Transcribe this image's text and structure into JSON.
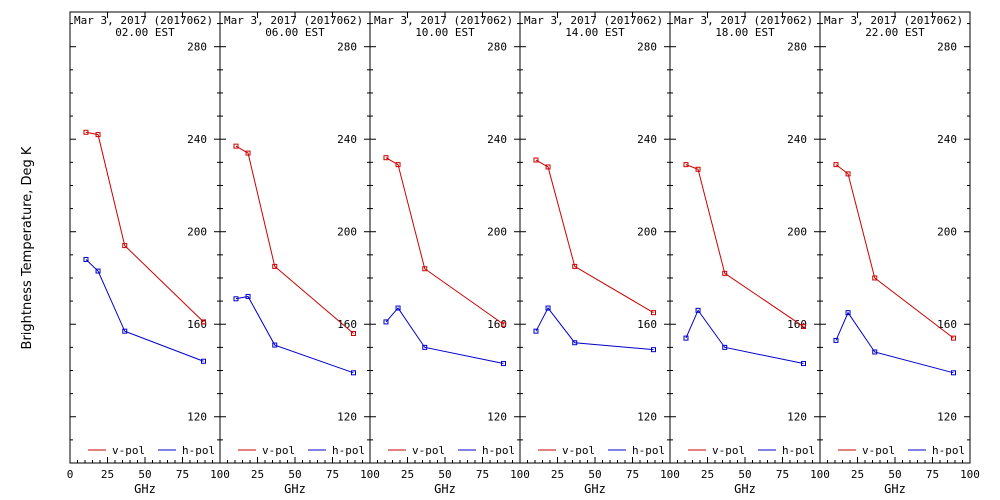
{
  "ylabel": "Brightness Temperature, Deg K",
  "xlabel": "GHz",
  "chart_data": [
    {
      "type": "line",
      "title": "Mar  3, 2017 (2017062)",
      "subtitle": "02.00 EST",
      "x": [
        10.65,
        18.7,
        36.5,
        89.0
      ],
      "series": [
        {
          "name": "v-pol",
          "color": "#cc0000",
          "values": [
            243,
            242,
            194,
            161
          ]
        },
        {
          "name": "h-pol",
          "color": "#0000cc",
          "values": [
            188,
            183,
            157,
            144
          ]
        }
      ]
    },
    {
      "type": "line",
      "title": "Mar  3, 2017 (2017062)",
      "subtitle": "06.00 EST",
      "x": [
        10.65,
        18.7,
        36.5,
        89.0
      ],
      "series": [
        {
          "name": "v-pol",
          "color": "#cc0000",
          "values": [
            237,
            234,
            185,
            156
          ]
        },
        {
          "name": "h-pol",
          "color": "#0000cc",
          "values": [
            171,
            172,
            151,
            139
          ]
        }
      ]
    },
    {
      "type": "line",
      "title": "Mar  3, 2017 (2017062)",
      "subtitle": "10.00 EST",
      "x": [
        10.65,
        18.7,
        36.5,
        89.0
      ],
      "series": [
        {
          "name": "v-pol",
          "color": "#cc0000",
          "values": [
            232,
            229,
            184,
            160
          ]
        },
        {
          "name": "h-pol",
          "color": "#0000cc",
          "values": [
            161,
            167,
            150,
            143
          ]
        }
      ]
    },
    {
      "type": "line",
      "title": "Mar  3, 2017 (2017062)",
      "subtitle": "14.00 EST",
      "x": [
        10.65,
        18.7,
        36.5,
        89.0
      ],
      "series": [
        {
          "name": "v-pol",
          "color": "#cc0000",
          "values": [
            231,
            228,
            185,
            165
          ]
        },
        {
          "name": "h-pol",
          "color": "#0000cc",
          "values": [
            157,
            167,
            152,
            149
          ]
        }
      ]
    },
    {
      "type": "line",
      "title": "Mar  3, 2017 (2017062)",
      "subtitle": "18.00 EST",
      "x": [
        10.65,
        18.7,
        36.5,
        89.0
      ],
      "series": [
        {
          "name": "v-pol",
          "color": "#cc0000",
          "values": [
            229,
            227,
            182,
            159
          ]
        },
        {
          "name": "h-pol",
          "color": "#0000cc",
          "values": [
            154,
            166,
            150,
            143
          ]
        }
      ]
    },
    {
      "type": "line",
      "title": "Mar  3, 2017 (2017062)",
      "subtitle": "22.00 EST",
      "x": [
        10.65,
        18.7,
        36.5,
        89.0
      ],
      "series": [
        {
          "name": "v-pol",
          "color": "#cc0000",
          "values": [
            229,
            225,
            180,
            154
          ]
        },
        {
          "name": "h-pol",
          "color": "#0000cc",
          "values": [
            153,
            165,
            148,
            139
          ]
        }
      ]
    }
  ],
  "axes": {
    "xlim": [
      0,
      100
    ],
    "ylim": [
      100,
      295
    ],
    "xticks": [
      0,
      25,
      50,
      75,
      100
    ],
    "xtick_labels": [
      "0",
      "25",
      "50",
      "75",
      "100"
    ],
    "yticks": [
      120,
      160,
      200,
      240,
      280
    ],
    "ytick_labels": [
      "120",
      "160",
      "200",
      "240",
      "280"
    ],
    "grid": false,
    "legend_placement": "bottom"
  }
}
